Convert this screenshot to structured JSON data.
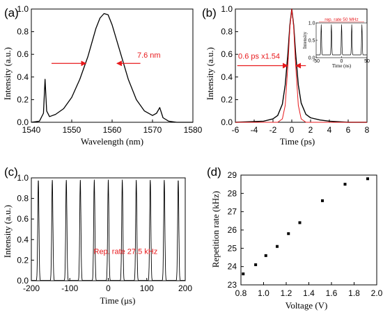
{
  "chart_data": [
    {
      "id": "a",
      "type": "line",
      "panel_label": "(a)",
      "xlabel": "Wavelength (nm)",
      "ylabel": "Intensity (a.u.)",
      "xlim": [
        1540,
        1580
      ],
      "ylim": [
        0,
        1.0
      ],
      "xticks": [
        1540,
        1550,
        1560,
        1570,
        1580
      ],
      "yticks": [
        0.0,
        0.2,
        0.4,
        0.6,
        0.8,
        1.0
      ],
      "series": [
        {
          "color": "#000000",
          "x": [
            1540,
            1542,
            1543,
            1543.4,
            1543.8,
            1544.5,
            1546,
            1548,
            1550,
            1552,
            1554,
            1556,
            1557,
            1558,
            1559,
            1560,
            1562,
            1564,
            1566,
            1568,
            1570,
            1571,
            1571.8,
            1572.6,
            1574,
            1576,
            1578,
            1580
          ],
          "y": [
            0.0,
            0.01,
            0.08,
            0.38,
            0.1,
            0.05,
            0.07,
            0.12,
            0.22,
            0.38,
            0.58,
            0.83,
            0.92,
            0.96,
            0.95,
            0.86,
            0.62,
            0.38,
            0.2,
            0.1,
            0.06,
            0.08,
            0.13,
            0.04,
            0.01,
            0.0,
            0.0,
            0.0
          ]
        }
      ],
      "annotations": [
        {
          "text": "7.6 nm",
          "color": "#e8191c",
          "x": 1566.2,
          "y": 0.57
        }
      ],
      "arrows": [
        {
          "from": 1545,
          "to": 1553.5,
          "y": 0.52,
          "color": "#e8191c"
        },
        {
          "from": 1567,
          "to": 1561.2,
          "y": 0.52,
          "color": "#e8191c"
        }
      ]
    },
    {
      "id": "b",
      "type": "line",
      "panel_label": "(b)",
      "xlabel": "Time (ps)",
      "ylabel": "Intensity (a.u.)",
      "xlim": [
        -6,
        8
      ],
      "ylim": [
        0,
        1.0
      ],
      "xticks": [
        -6,
        -4,
        -2,
        0,
        2,
        4,
        6,
        8
      ],
      "yticks": [
        0.0,
        0.2,
        0.4,
        0.6,
        0.8,
        1.0
      ],
      "series": [
        {
          "color": "#000000",
          "x": [
            -6,
            -3,
            -2,
            -1.5,
            -1,
            -0.7,
            -0.4,
            -0.2,
            0,
            0.2,
            0.4,
            0.7,
            1,
            1.5,
            2,
            3,
            4,
            6,
            8
          ],
          "y": [
            0.0,
            0.01,
            0.03,
            0.06,
            0.16,
            0.33,
            0.62,
            0.86,
            1.0,
            0.86,
            0.62,
            0.33,
            0.17,
            0.07,
            0.04,
            0.02,
            0.01,
            0.0,
            0.0
          ]
        },
        {
          "color": "#e8191c",
          "x": [
            -6,
            -1.5,
            -1,
            -0.7,
            -0.4,
            -0.2,
            0,
            0.2,
            0.4,
            0.7,
            1,
            1.5,
            8
          ],
          "y": [
            0.0,
            0.0,
            0.03,
            0.15,
            0.52,
            0.84,
            1.0,
            0.84,
            0.52,
            0.15,
            0.03,
            0.0,
            0.0
          ]
        }
      ],
      "annotations": [
        {
          "text": "0.6 ps x1.54",
          "color": "#e8191c",
          "x": -5.7,
          "y": 0.56
        }
      ],
      "arrows": [
        {
          "from": -5.8,
          "to": -0.45,
          "y": 0.5,
          "color": "#e8191c"
        },
        {
          "from": 1.5,
          "to": 0.45,
          "y": 0.5,
          "color": "#e8191c"
        }
      ],
      "inset": {
        "xlabel": "Time (ns)",
        "ylabel": "Intensity",
        "xlim": [
          -50,
          50
        ],
        "ylim": [
          0,
          1.0
        ],
        "xticks": [
          -50,
          0,
          50
        ],
        "yticks": [
          0.0,
          0.5,
          1.0
        ],
        "annotation": "rep. rate 50 MHz",
        "pulses_x": [
          -40,
          -20,
          0,
          20,
          40
        ],
        "baseline": 0.08
      }
    },
    {
      "id": "c",
      "type": "line",
      "panel_label": "(c)",
      "xlabel": "Time (μs)",
      "ylabel": "Intensity (a.u.)",
      "xlim": [
        -200,
        200
      ],
      "ylim": [
        0,
        1.0
      ],
      "xticks": [
        -200,
        -100,
        0,
        100,
        200
      ],
      "yticks": [
        0.0,
        0.2,
        0.4,
        0.6,
        0.8,
        1.0
      ],
      "pulses_x": [
        -181.8,
        -145.5,
        -109.1,
        -72.7,
        -36.4,
        0,
        36.4,
        72.7,
        109.1,
        145.5,
        181.8
      ],
      "pulse_peak": 0.98,
      "annotations": [
        {
          "text": "Rep. rate 27.5 kHz",
          "color": "#e8191c",
          "x": -38,
          "y": 0.26
        }
      ]
    },
    {
      "id": "d",
      "type": "scatter",
      "panel_label": "(d)",
      "xlabel": "Voltage (V)",
      "ylabel": "Repetition rate (kHz)",
      "xlim": [
        0.8,
        2.0
      ],
      "ylim": [
        23,
        29
      ],
      "xticks": [
        0.8,
        1.0,
        1.2,
        1.4,
        1.6,
        1.8,
        2.0
      ],
      "yticks": [
        23,
        24,
        25,
        26,
        27,
        28,
        29
      ],
      "x": [
        0.82,
        0.93,
        1.02,
        1.12,
        1.22,
        1.32,
        1.52,
        1.72,
        1.92
      ],
      "y": [
        23.6,
        24.1,
        24.6,
        25.1,
        25.8,
        26.4,
        27.6,
        28.5,
        28.8
      ]
    }
  ]
}
